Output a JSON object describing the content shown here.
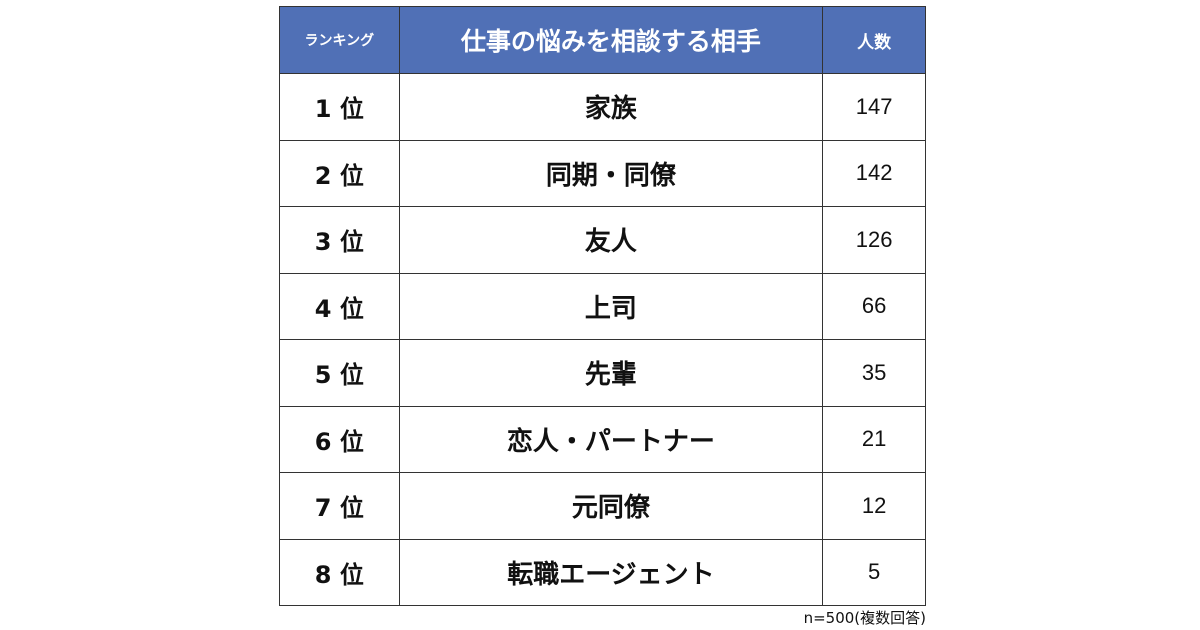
{
  "header_color": "#5070B6",
  "headers": {
    "rank": "ランキング",
    "partner": "仕事の悩みを相談する相手",
    "count": "人数"
  },
  "rows": [
    {
      "rank": "1 位",
      "partner": "家族",
      "count": "147"
    },
    {
      "rank": "2 位",
      "partner": "同期・同僚",
      "count": "142"
    },
    {
      "rank": "3 位",
      "partner": "友人",
      "count": "126"
    },
    {
      "rank": "4 位",
      "partner": "上司",
      "count": "66"
    },
    {
      "rank": "5 位",
      "partner": "先輩",
      "count": "35"
    },
    {
      "rank": "6 位",
      "partner": "恋人・パートナー",
      "count": "21"
    },
    {
      "rank": "7 位",
      "partner": "元同僚",
      "count": "12"
    },
    {
      "rank": "8 位",
      "partner": "転職エージェント",
      "count": "5"
    }
  ],
  "note": "n=500(複数回答)"
}
